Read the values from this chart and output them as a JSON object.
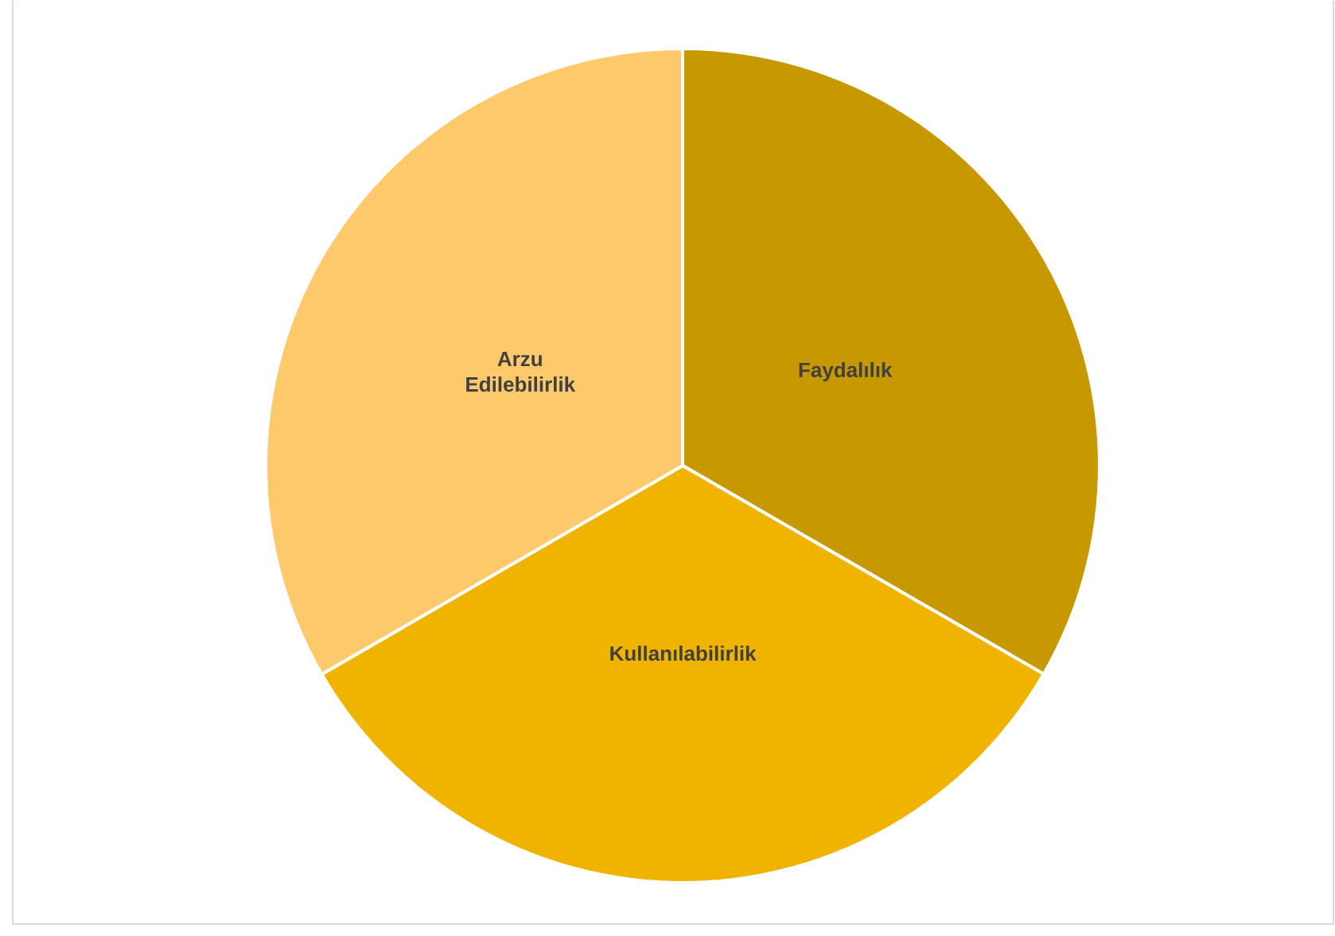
{
  "chart_data": {
    "type": "pie",
    "categories": [
      "Faydalılık",
      "Kullanılabilirlik",
      "Arzu Edilebilirlik"
    ],
    "values": [
      33.33,
      33.33,
      33.34
    ],
    "colors": [
      "#c89800",
      "#f0b400",
      "#fdc96b"
    ]
  }
}
